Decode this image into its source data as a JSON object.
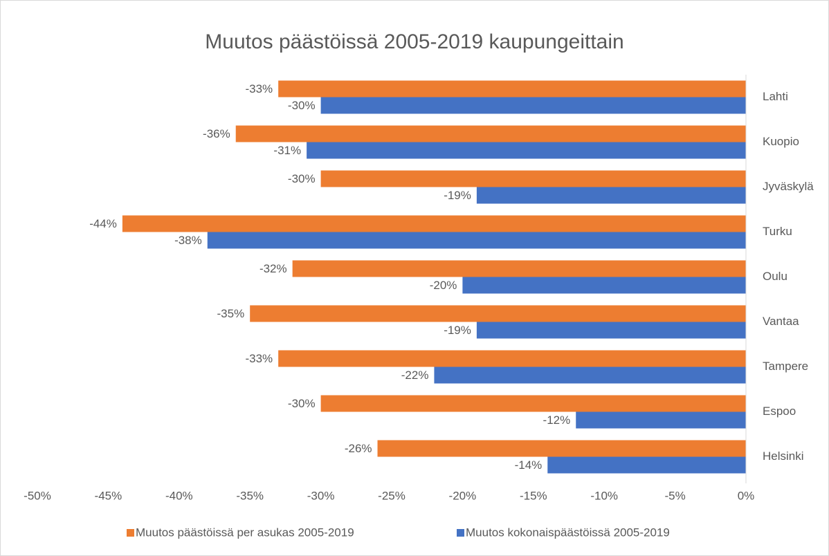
{
  "chart_data": {
    "type": "bar",
    "orientation": "horizontal",
    "title": "Muutos päästöissä 2005-2019 kaupungeittain",
    "categories": [
      "Lahti",
      "Kuopio",
      "Jyväskylä",
      "Turku",
      "Oulu",
      "Vantaa",
      "Tampere",
      "Espoo",
      "Helsinki"
    ],
    "series": [
      {
        "name": "Muutos päästöissä per asukas 2005-2019",
        "color": "#ed7d31",
        "values": [
          -33,
          -36,
          -30,
          -44,
          -32,
          -35,
          -33,
          -30,
          -26
        ],
        "value_labels": [
          "-33%",
          "-36%",
          "-30%",
          "-44%",
          "-32%",
          "-35%",
          "-33%",
          "-30%",
          "-26%"
        ]
      },
      {
        "name": "Muutos kokonaispäästöissä 2005-2019",
        "color": "#4472c4",
        "values": [
          -30,
          -31,
          -19,
          -38,
          -20,
          -19,
          -22,
          -12,
          -14
        ],
        "value_labels": [
          "-30%",
          "-31%",
          "-19%",
          "-38%",
          "-20%",
          "-19%",
          "-22%",
          "-12%",
          "-14%"
        ]
      }
    ],
    "xlim": [
      -50,
      0
    ],
    "xticks": [
      {
        "value": -50,
        "label": "-50%"
      },
      {
        "value": -45,
        "label": "-45%"
      },
      {
        "value": -40,
        "label": "-40%"
      },
      {
        "value": -35,
        "label": "-35%"
      },
      {
        "value": -30,
        "label": "-30%"
      },
      {
        "value": -25,
        "label": "-25%"
      },
      {
        "value": -20,
        "label": "-20%"
      },
      {
        "value": -15,
        "label": "-15%"
      },
      {
        "value": -10,
        "label": "-10%"
      },
      {
        "value": -5,
        "label": "-5%"
      },
      {
        "value": 0,
        "label": "0%"
      }
    ],
    "legend": "bottom"
  }
}
